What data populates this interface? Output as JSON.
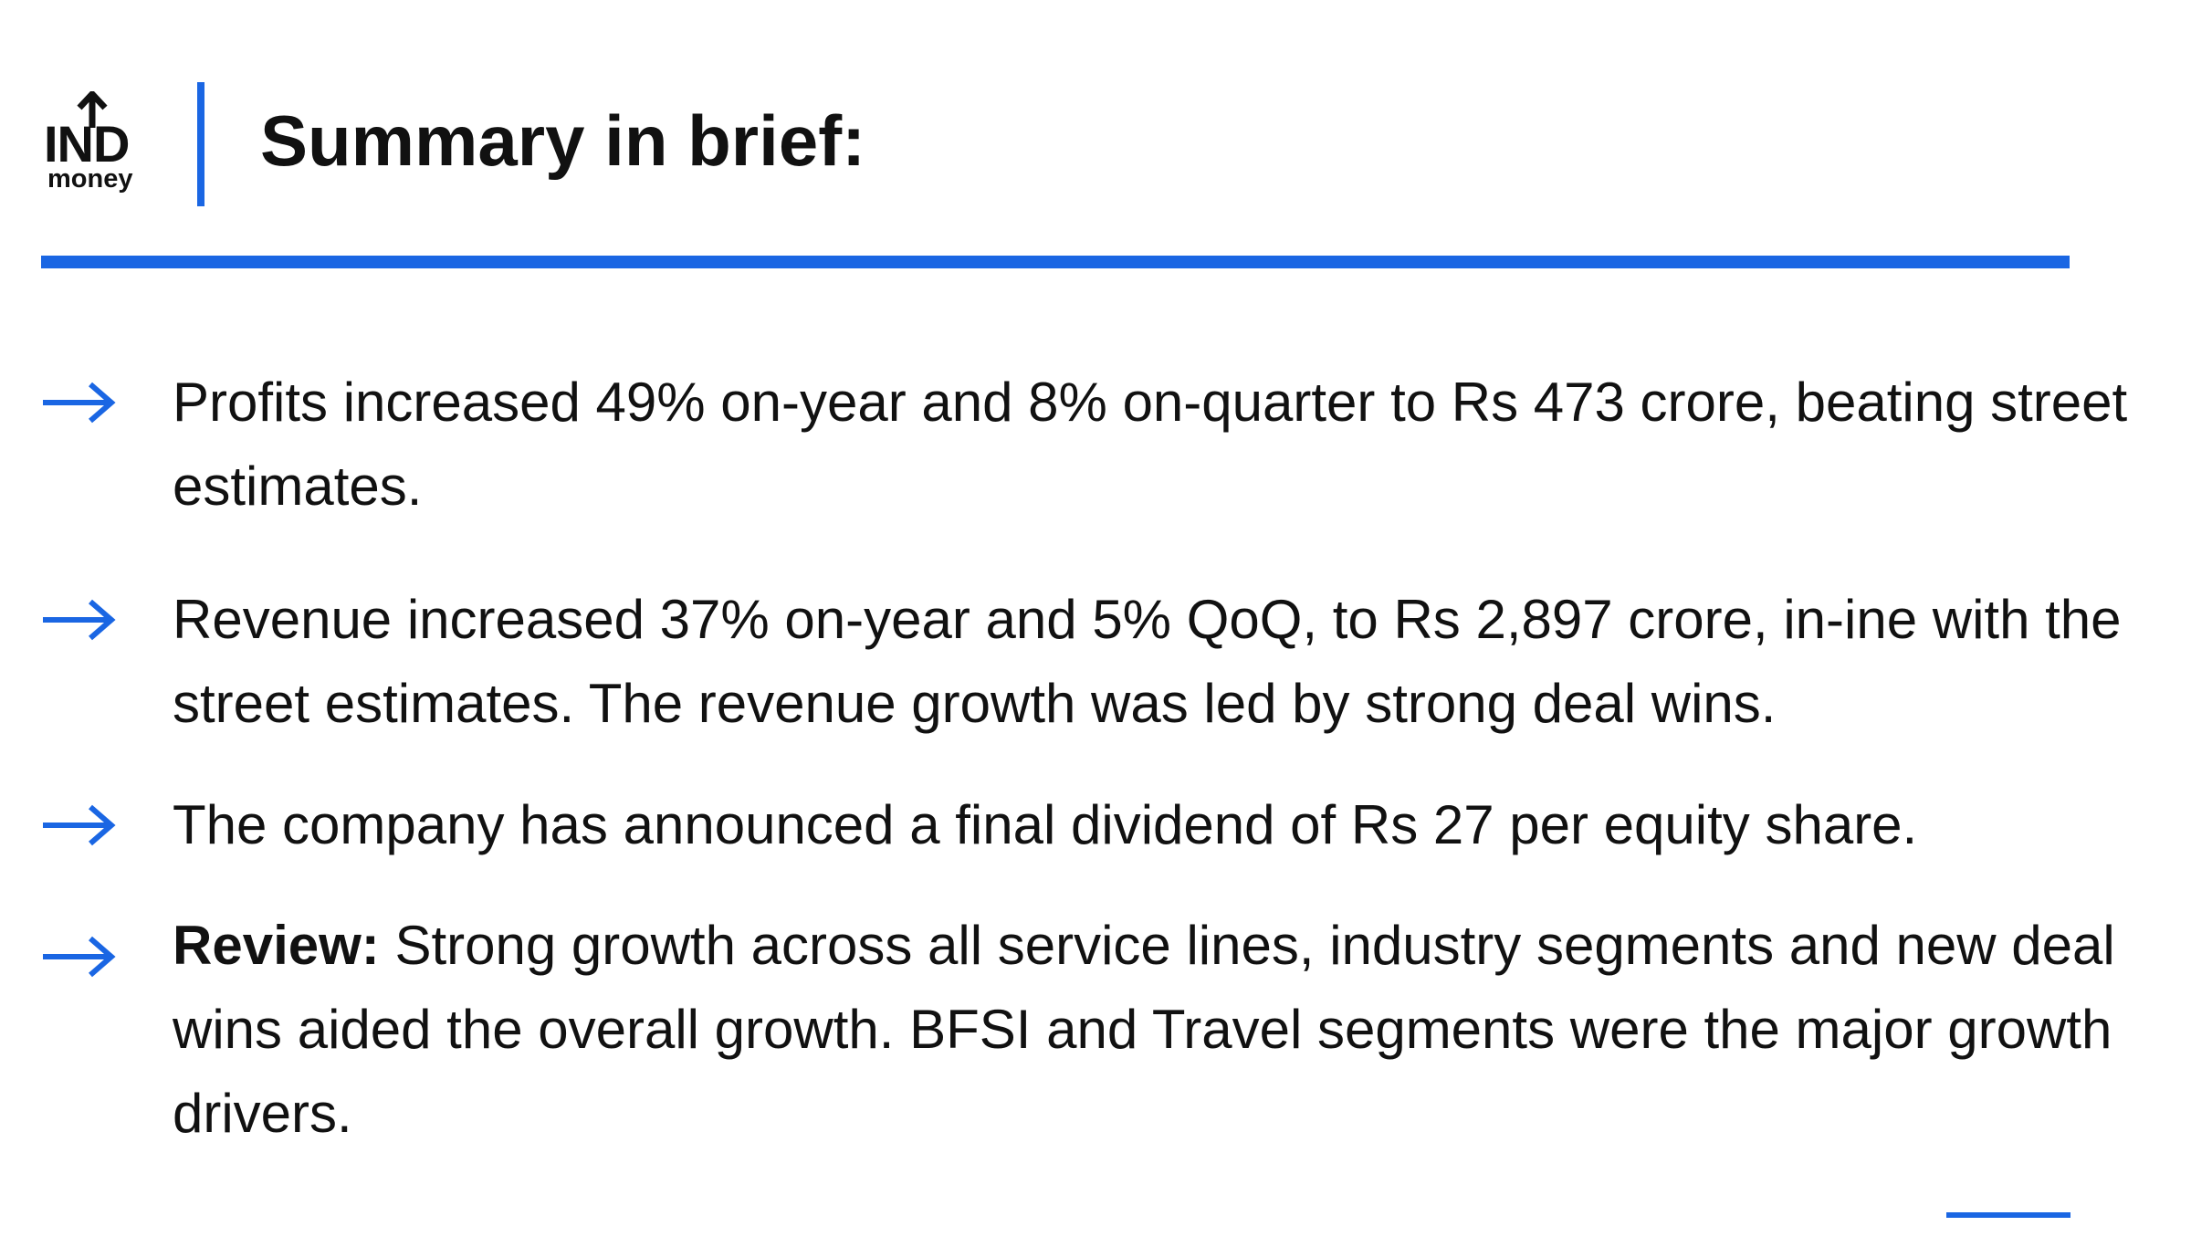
{
  "brand": {
    "logo_top": "IND",
    "logo_bottom": "money",
    "accent_color": "#1a66e3"
  },
  "header": {
    "title": "Summary in brief:"
  },
  "bullets": [
    {
      "icon": "right-arrow-icon",
      "text": "Profits increased 49% on-year and 8% on-quarter to Rs 473 crore, beating street estimates."
    },
    {
      "icon": "right-arrow-icon",
      "text": "Revenue increased 37% on-year and 5% QoQ, to Rs 2,897 crore, in-ine with the street estimates. The revenue growth was led by strong deal wins."
    },
    {
      "icon": "right-arrow-icon",
      "text": "The company has announced a final dividend of Rs 27 per equity share."
    },
    {
      "icon": "right-arrow-icon",
      "label": "Review:",
      "text": "Strong growth across all service lines, industry segments and new deal wins aided the overall growth. BFSI and Travel segments were the major growth drivers."
    }
  ]
}
